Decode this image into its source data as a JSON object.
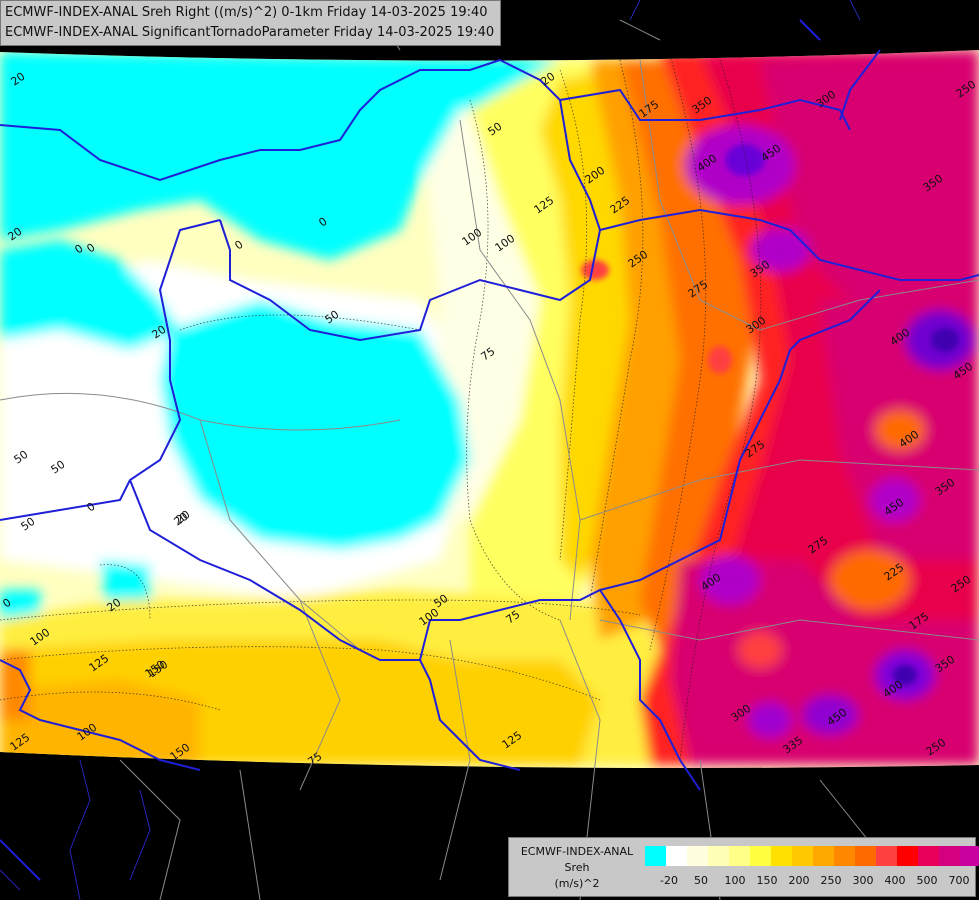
{
  "header": {
    "line1": "ECMWF-INDEX-ANAL Sreh Right ((m/s)^2) 0-1km Friday 14-03-2025 19:40",
    "line2": "ECMWF-INDEX-ANAL SignificantTornadoParameter Friday 14-03-2025 19:40"
  },
  "legend": {
    "model": "ECMWF-INDEX-ANAL",
    "parameter": "Sreh",
    "unit": "(m/s)^2",
    "colors": [
      "#00ffff",
      "#ffffff",
      "#ffffe0",
      "#ffffb8",
      "#ffff88",
      "#ffff40",
      "#ffe000",
      "#ffc800",
      "#ffa800",
      "#ff8800",
      "#ff6a00",
      "#ff4040",
      "#ff0000",
      "#e8005a",
      "#d40080",
      "#c800a0",
      "#b400c8",
      "#9000e0",
      "#6a00d8",
      "#4000b0",
      "#1a0090",
      "#000080"
    ],
    "labels": [
      "-20",
      "50",
      "100",
      "150",
      "200",
      "250",
      "300",
      "400",
      "500",
      "700"
    ]
  },
  "contour_labels": [
    "20",
    "50",
    "0",
    "20",
    "0",
    "0",
    "50",
    "20",
    "0",
    "50",
    "20",
    "50",
    "100",
    "125",
    "150",
    "175",
    "200",
    "225",
    "250",
    "275",
    "300",
    "350",
    "400",
    "450",
    "350",
    "250",
    "300",
    "350",
    "450",
    "400",
    "450",
    "275",
    "350",
    "400",
    "225",
    "250",
    "175",
    "350",
    "400",
    "450",
    "335",
    "300",
    "250",
    "275",
    "400",
    "100",
    "75",
    "50",
    "125",
    "150",
    "100",
    "125",
    "150",
    "100",
    "125",
    "75",
    "20",
    "0",
    "0",
    "50",
    "20",
    "100",
    "75",
    "20"
  ]
}
